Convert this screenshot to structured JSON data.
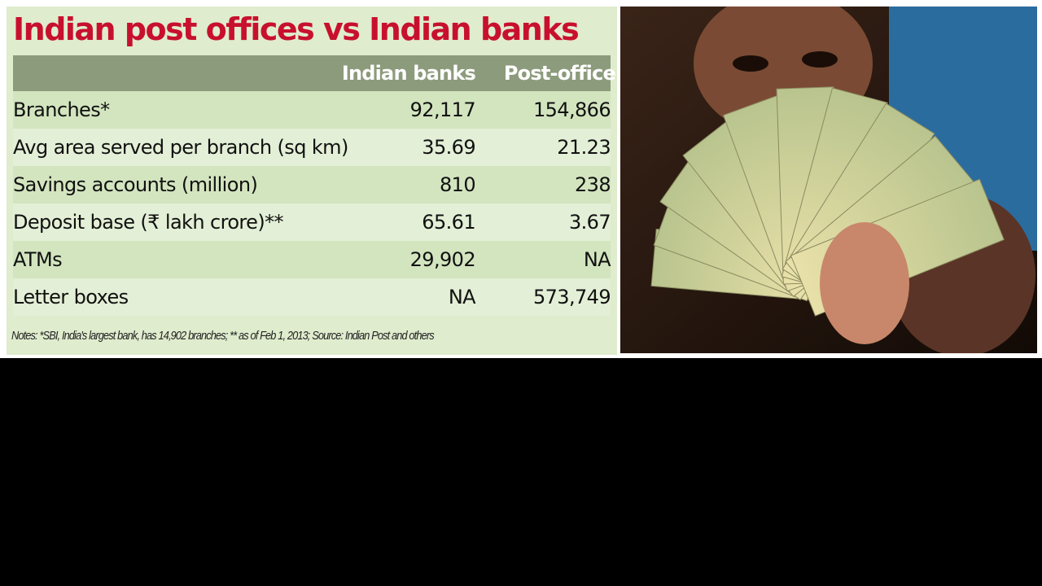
{
  "title": "Indian post offices vs Indian banks",
  "table": {
    "header": [
      "Indian banks",
      "Post-office"
    ],
    "rows": [
      [
        "Branches*",
        "92,117",
        "154,866"
      ],
      [
        "Avg area served per branch (sq km)",
        "35.69",
        "21.23"
      ],
      [
        "Savings accounts (million)",
        "810",
        "238"
      ],
      [
        "Deposit base (₹ lakh crore)**",
        "65.61",
        "3.67"
      ],
      [
        "ATMs",
        "29,902",
        "NA"
      ],
      [
        "Letter boxes",
        "NA",
        "573,749"
      ]
    ]
  },
  "notes": "Notes: *SBI, India's largest bank, has 14,902 branches; ** as of Feb 1, 2013; Source: Indian Post and others"
}
